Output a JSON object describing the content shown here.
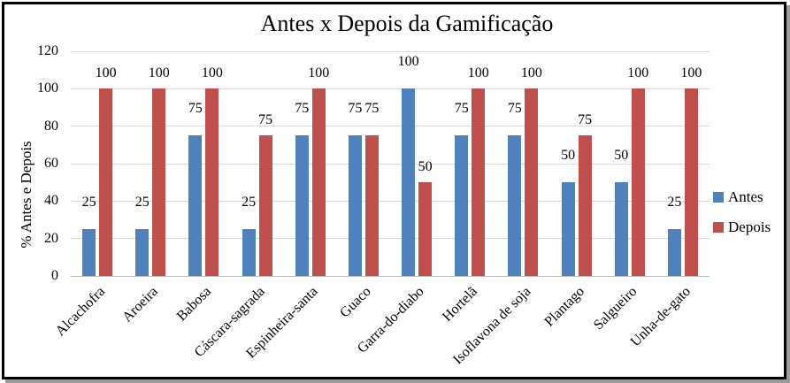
{
  "chart_data": {
    "type": "bar",
    "title": "Antes x Depois da Gamificação",
    "ylabel": "% Antes e Depois",
    "xlabel": "",
    "ylim": [
      0,
      120
    ],
    "yticks": [
      0,
      20,
      40,
      60,
      80,
      100,
      120
    ],
    "grid": true,
    "data_labels": true,
    "legend_position": "right",
    "categories": [
      "Alcachofra",
      "Aroeira",
      "Babosa",
      "Cáscara-sagrada",
      "Espinheira-santa",
      "Guaco",
      "Garra-do-diabo",
      "Hortelã",
      "Isoflavona de soja",
      "Plantago",
      "Salgueiro",
      "Unha-de-gato"
    ],
    "series": [
      {
        "name": "Antes",
        "color": "#4F81BD",
        "values": [
          25,
          25,
          75,
          25,
          75,
          75,
          100,
          75,
          75,
          50,
          50,
          25
        ]
      },
      {
        "name": "Depois",
        "color": "#C0504D",
        "values": [
          100,
          100,
          100,
          75,
          100,
          75,
          50,
          100,
          100,
          75,
          100,
          100
        ]
      }
    ]
  },
  "colors": {
    "grid": "#D9D9D9",
    "axis": "#BFBFBF",
    "text": "#000000",
    "frame_border": "#000000",
    "frame_shadow": "#9C9C9C"
  }
}
